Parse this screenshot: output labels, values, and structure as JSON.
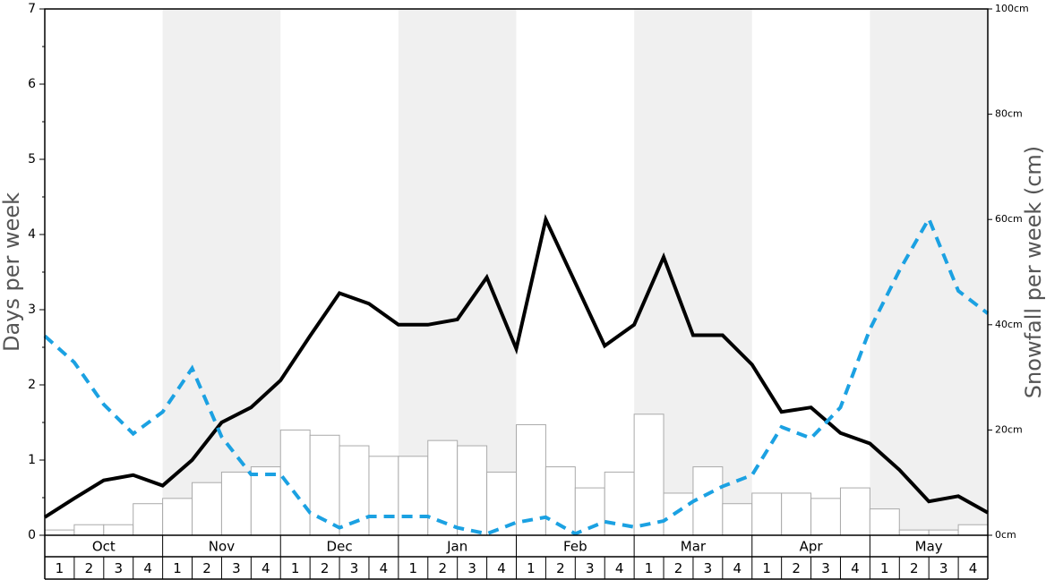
{
  "chart_data": {
    "type": "bar-line",
    "y_label": "Days per week",
    "y2_label": "Snowfall per week (cm)",
    "months": [
      "Oct",
      "Nov",
      "Dec",
      "Jan",
      "Feb",
      "Mar",
      "Apr",
      "May"
    ],
    "weeks": [
      1,
      2,
      3,
      4
    ],
    "band_color": "#f0f0f0",
    "ylim": [
      0,
      7
    ],
    "yticks": [
      0,
      1,
      2,
      3,
      4,
      5,
      6,
      7
    ],
    "y2lim": [
      0,
      100
    ],
    "y2ticks": [
      {
        "value": 0,
        "label": "0cm"
      },
      {
        "value": 20,
        "label": "20cm"
      },
      {
        "value": 40,
        "label": "40cm"
      },
      {
        "value": 60,
        "label": "60cm"
      },
      {
        "value": 80,
        "label": "80cm"
      },
      {
        "value": 100,
        "label": "100cm"
      }
    ],
    "series": [
      {
        "kind": "bar",
        "axis": "y2",
        "color": "#ffffff",
        "values": [
          1,
          2,
          2,
          6,
          7,
          10,
          12,
          13,
          20,
          19,
          17,
          15,
          15,
          18,
          17,
          12,
          21,
          13,
          9,
          12,
          23,
          8,
          13,
          6,
          8,
          8,
          7,
          9,
          5,
          1,
          1,
          2
        ]
      },
      {
        "kind": "line",
        "color": "#000000",
        "values": [
          0.24,
          0.49,
          0.73,
          0.8,
          0.66,
          1.0,
          1.5,
          1.7,
          2.06,
          2.65,
          3.22,
          3.08,
          2.8,
          2.8,
          2.87,
          3.43,
          2.48,
          4.2,
          3.36,
          2.52,
          2.8,
          3.7,
          2.66,
          2.66,
          2.27,
          1.64,
          1.7,
          1.36,
          1.22,
          0.87,
          0.45,
          0.52,
          0.3
        ]
      },
      {
        "kind": "dashed",
        "color": "#1ba1e2",
        "values": [
          2.65,
          2.3,
          1.74,
          1.35,
          1.64,
          2.22,
          1.31,
          0.81,
          0.81,
          0.3,
          0.1,
          0.25,
          0.25,
          0.25,
          0.1,
          0.02,
          0.17,
          0.24,
          0.02,
          0.18,
          0.11,
          0.19,
          0.45,
          0.65,
          0.8,
          1.44,
          1.29,
          1.7,
          2.74,
          3.52,
          4.21,
          3.25,
          2.95
        ]
      }
    ]
  }
}
